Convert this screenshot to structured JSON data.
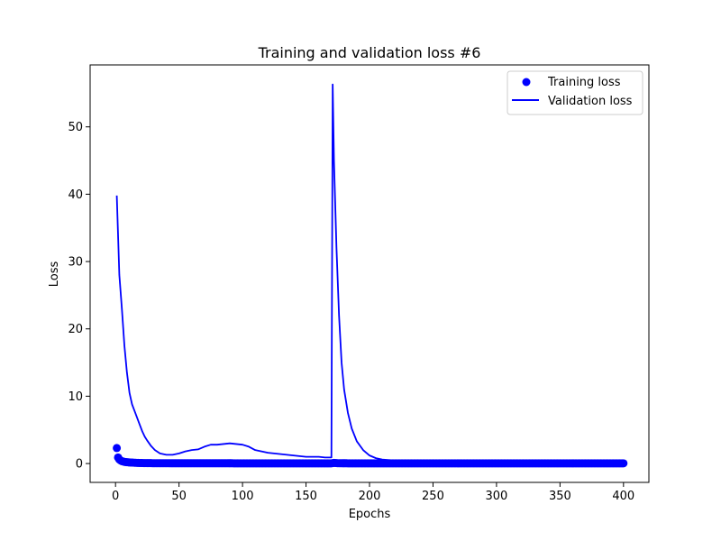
{
  "chart_data": {
    "type": "line",
    "title": "Training and validation loss #6",
    "xlabel": "Epochs",
    "ylabel": "Loss",
    "xlim": [
      -20,
      420
    ],
    "ylim": [
      -2.8,
      59.2
    ],
    "xticks": [
      0,
      50,
      100,
      150,
      200,
      250,
      300,
      350,
      400
    ],
    "yticks": [
      0,
      10,
      20,
      30,
      40,
      50
    ],
    "grid": false,
    "legend": "top-right",
    "colors": {
      "series": "#0000ff",
      "axes": "#000000"
    },
    "series": [
      {
        "name": "Training loss",
        "kind": "scatter",
        "x": [
          1,
          2,
          3,
          4,
          5,
          6,
          7,
          8,
          9,
          10,
          11,
          12,
          13,
          14,
          15,
          16,
          17,
          18,
          19,
          20,
          22,
          25,
          30,
          35,
          40,
          45,
          50,
          60,
          70,
          80,
          90,
          100,
          110,
          120,
          130,
          140,
          150,
          160,
          170,
          172,
          175,
          180,
          190,
          200,
          220,
          240,
          260,
          280,
          300,
          320,
          340,
          360,
          380,
          400
        ],
        "y": [
          2.3,
          0.9,
          0.6,
          0.45,
          0.35,
          0.3,
          0.25,
          0.22,
          0.2,
          0.18,
          0.16,
          0.15,
          0.14,
          0.13,
          0.12,
          0.11,
          0.1,
          0.09,
          0.08,
          0.08,
          0.07,
          0.06,
          0.05,
          0.05,
          0.05,
          0.04,
          0.04,
          0.04,
          0.04,
          0.04,
          0.04,
          0.03,
          0.03,
          0.03,
          0.03,
          0.03,
          0.03,
          0.03,
          0.03,
          0.1,
          0.05,
          0.04,
          0.03,
          0.03,
          0.03,
          0.03,
          0.03,
          0.03,
          0.03,
          0.03,
          0.03,
          0.03,
          0.03,
          0.03
        ]
      },
      {
        "name": "Validation loss",
        "kind": "line",
        "x": [
          1,
          3,
          5,
          7,
          9,
          11,
          13,
          15,
          17,
          19,
          21,
          23,
          25,
          28,
          31,
          35,
          40,
          45,
          50,
          55,
          60,
          65,
          70,
          75,
          80,
          85,
          90,
          95,
          100,
          105,
          110,
          115,
          120,
          125,
          130,
          140,
          150,
          160,
          165,
          170,
          171,
          172,
          174,
          176,
          178,
          180,
          183,
          186,
          190,
          195,
          200,
          205,
          210,
          220,
          230,
          240,
          250,
          258,
          265,
          270,
          280,
          290,
          300,
          310,
          320,
          330,
          340,
          350,
          360,
          370,
          380,
          390,
          400
        ],
        "y": [
          39.8,
          28.0,
          23.0,
          17.5,
          13.5,
          10.5,
          8.8,
          7.8,
          6.8,
          5.8,
          4.8,
          4.0,
          3.4,
          2.6,
          2.0,
          1.5,
          1.3,
          1.3,
          1.5,
          1.8,
          2.0,
          2.1,
          2.5,
          2.8,
          2.8,
          2.9,
          3.0,
          2.9,
          2.8,
          2.5,
          2.0,
          1.8,
          1.6,
          1.5,
          1.4,
          1.2,
          1.0,
          1.0,
          0.9,
          0.9,
          56.3,
          45.0,
          32.0,
          22.0,
          15.0,
          11.0,
          7.5,
          5.2,
          3.3,
          2.0,
          1.2,
          0.8,
          0.6,
          0.45,
          0.4,
          0.4,
          0.45,
          0.5,
          0.4,
          0.3,
          0.3,
          0.3,
          0.3,
          0.3,
          0.3,
          0.25,
          0.3,
          0.3,
          0.35,
          0.35,
          0.3,
          0.3,
          0.3
        ]
      }
    ]
  }
}
